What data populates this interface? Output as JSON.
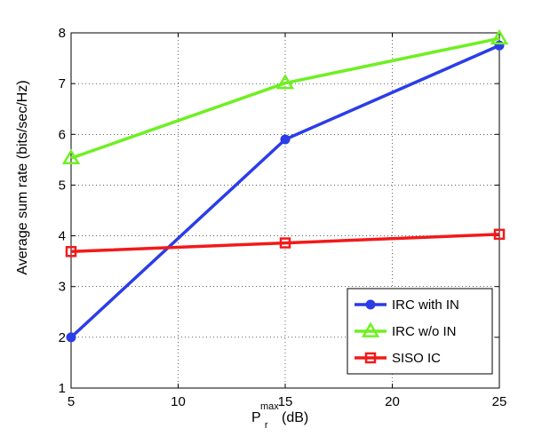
{
  "chart_data": {
    "type": "line",
    "title": "",
    "xlabel": {
      "base": "P",
      "subscript": "r",
      "superscript": "max",
      "unit": "(dB)"
    },
    "ylabel": "Average sum rate (bits/sec/Hz)",
    "xlim": [
      5,
      25
    ],
    "ylim": [
      1,
      8
    ],
    "xticks": [
      5,
      10,
      15,
      20,
      25
    ],
    "yticks": [
      1,
      2,
      3,
      4,
      5,
      6,
      7,
      8
    ],
    "grid": true,
    "legend_position": "bottom-right",
    "x": [
      5,
      15,
      25
    ],
    "series": [
      {
        "name": "IRC with IN",
        "values": [
          2.0,
          5.9,
          7.75
        ],
        "color": "#2b3de8",
        "marker": "circle"
      },
      {
        "name": "IRC w/o IN",
        "values": [
          5.53,
          7.01,
          7.89
        ],
        "color": "#6ef021",
        "marker": "triangle"
      },
      {
        "name": "SISO IC",
        "values": [
          3.69,
          3.86,
          4.03
        ],
        "color": "#f21a1a",
        "marker": "square"
      }
    ]
  }
}
